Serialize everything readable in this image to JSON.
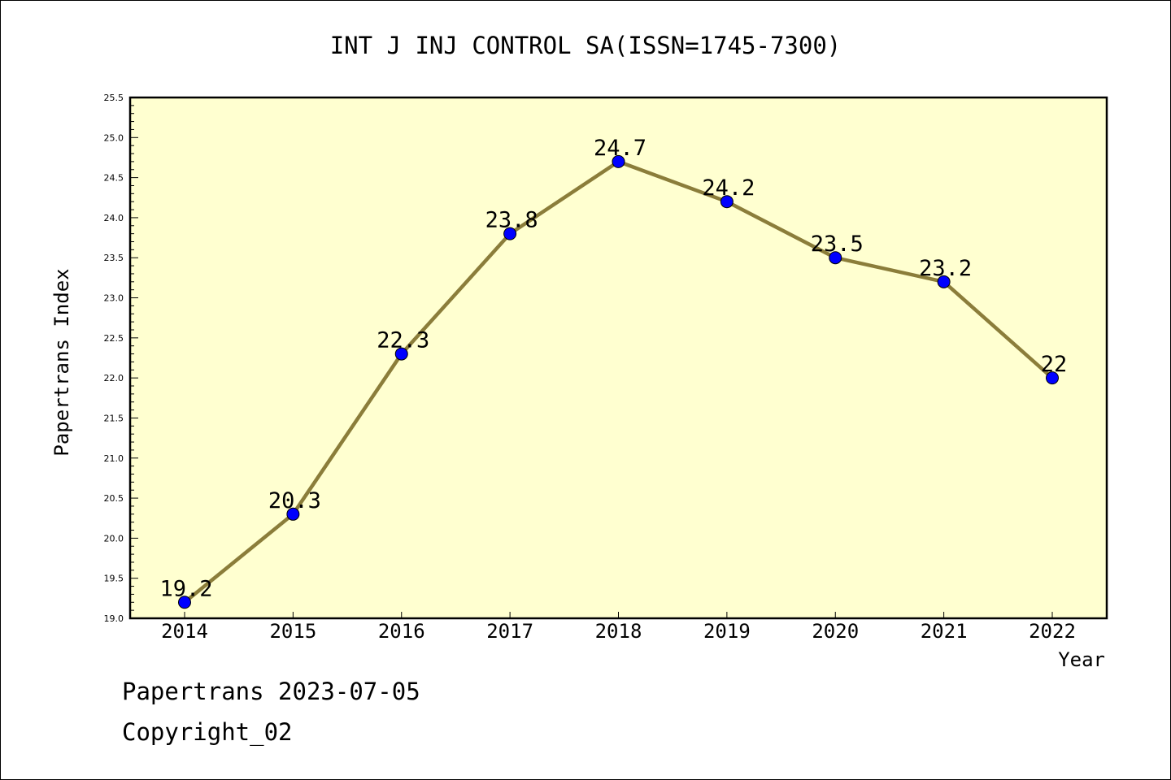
{
  "chart_data": {
    "type": "line",
    "title": "INT J INJ CONTROL SA(ISSN=1745-7300)",
    "xlabel": "Year",
    "ylabel": "Papertrans Index",
    "x": [
      "2014",
      "2015",
      "2016",
      "2017",
      "2018",
      "2019",
      "2020",
      "2021",
      "2022"
    ],
    "values": [
      19.2,
      20.3,
      22.3,
      23.8,
      24.7,
      24.2,
      23.5,
      23.2,
      22.0
    ],
    "data_labels": [
      "19.2",
      "20.3",
      "22.3",
      "23.8",
      "24.7",
      "24.2",
      "23.5",
      "23.2",
      "22"
    ],
    "ylim": [
      19.0,
      25.5
    ],
    "yticks": [
      "19.0",
      "19.5",
      "20.0",
      "20.5",
      "21.0",
      "21.5",
      "22.0",
      "22.5",
      "23.0",
      "23.5",
      "24.0",
      "24.5",
      "25.0",
      "25.5"
    ],
    "grid": false,
    "colors": {
      "plot_background": "#ffffd0",
      "line": "#8b7d3a",
      "marker": "#0000ff"
    }
  },
  "footer": {
    "source": "Papertrans 2023-07-05",
    "copyright": "Copyright_02"
  }
}
